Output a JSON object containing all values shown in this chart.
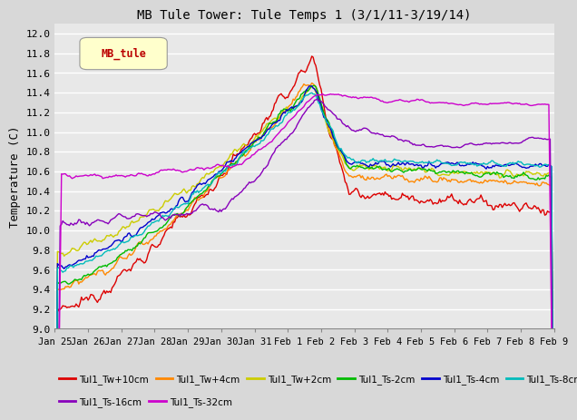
{
  "title": "MB Tule Tower: Tule Temps 1 (3/1/11-3/19/14)",
  "ylabel": "Temperature (C)",
  "legend_label": "MB_tule",
  "ylim": [
    9.0,
    12.1
  ],
  "xlim": [
    0,
    375
  ],
  "x_tick_labels": [
    "Jan 25",
    "Jan 26",
    "Jan 27",
    "Jan 28",
    "Jan 29",
    "Jan 30",
    "Jan 31",
    "Feb 1",
    "Feb 2",
    "Feb 3",
    "Feb 4",
    "Feb 5",
    "Feb 6",
    "Feb 7",
    "Feb 8",
    "Feb 9"
  ],
  "x_tick_positions": [
    0,
    25,
    50,
    75,
    100,
    125,
    150,
    175,
    200,
    225,
    250,
    275,
    300,
    325,
    350,
    375
  ],
  "plot_bg": "#e8e8e8",
  "fig_bg": "#d8d8d8",
  "grid_color": "#ffffff",
  "series": [
    {
      "label": "Tul1_Tw+10cm",
      "color": "#dd0000"
    },
    {
      "label": "Tul1_Tw+4cm",
      "color": "#ff8800"
    },
    {
      "label": "Tul1_Tw+2cm",
      "color": "#cccc00"
    },
    {
      "label": "Tul1_Ts-2cm",
      "color": "#00bb00"
    },
    {
      "label": "Tul1_Ts-4cm",
      "color": "#0000cc"
    },
    {
      "label": "Tul1_Ts-8cm",
      "color": "#00bbbb"
    },
    {
      "label": "Tul1_Ts-16cm",
      "color": "#8800bb"
    },
    {
      "label": "Tul1_Ts-32cm",
      "color": "#cc00cc"
    }
  ]
}
